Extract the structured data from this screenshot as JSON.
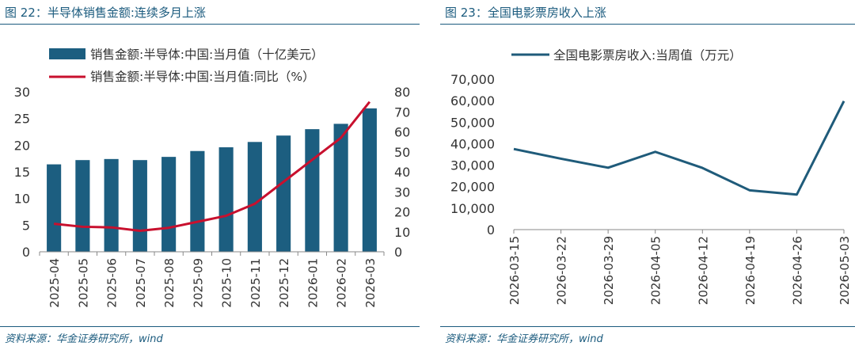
{
  "left": {
    "title": "图 22：半导体销售金额:连续多月上涨",
    "source": "资料来源：华金证券研究所，wind"
  },
  "right": {
    "title": "图 23：全国电影票房收入上涨",
    "source": "资料来源：华金证券研究所，wind"
  },
  "colors": {
    "bar": "#1c5e80",
    "line_red": "#c8102e",
    "line_blue": "#1f5b7a",
    "accent": "#1b5b7e"
  },
  "chart_data": [
    {
      "type": "bar",
      "categories": [
        "2025-04",
        "2025-05",
        "2025-06",
        "2025-07",
        "2025-08",
        "2025-09",
        "2025-10",
        "2025-11",
        "2025-12",
        "2026-01",
        "2026-02",
        "2026-03"
      ],
      "series": [
        {
          "name": "销售金额:半导体:中国:当月值（十亿美元）",
          "type": "bar",
          "axis": "left",
          "values": [
            16.4,
            17.2,
            17.4,
            17.2,
            17.8,
            18.9,
            19.6,
            20.6,
            21.8,
            23.0,
            24.0,
            26.9
          ]
        },
        {
          "name": "销售金额:半导体:中国:当月值:同比（%）",
          "type": "line",
          "axis": "right",
          "values": [
            14,
            12.5,
            12.2,
            10.5,
            12,
            15,
            18,
            24,
            35,
            46,
            57,
            75
          ]
        }
      ],
      "yleft": {
        "lim": [
          0,
          30
        ],
        "ticks": [
          "0",
          "5",
          "10",
          "15",
          "20",
          "25",
          "30"
        ]
      },
      "yright": {
        "lim": [
          0,
          80
        ],
        "ticks": [
          "0",
          "10",
          "20",
          "30",
          "40",
          "50",
          "60",
          "70",
          "80"
        ]
      },
      "legend": "top"
    },
    {
      "type": "line",
      "categories": [
        "2026-03-15",
        "2026-03-22",
        "2026-03-29",
        "2026-04-05",
        "2026-04-12",
        "2026-04-19",
        "2026-04-26",
        "2026-05-03"
      ],
      "series": [
        {
          "name": "全国电影票房收入:当周值（万元）",
          "values": [
            37500,
            33000,
            28800,
            36200,
            28700,
            18300,
            16300,
            59800
          ]
        }
      ],
      "ylim": [
        0,
        70000
      ],
      "yticks": [
        "0",
        "10,000",
        "20,000",
        "30,000",
        "40,000",
        "50,000",
        "60,000",
        "70,000"
      ],
      "legend": "top"
    }
  ]
}
